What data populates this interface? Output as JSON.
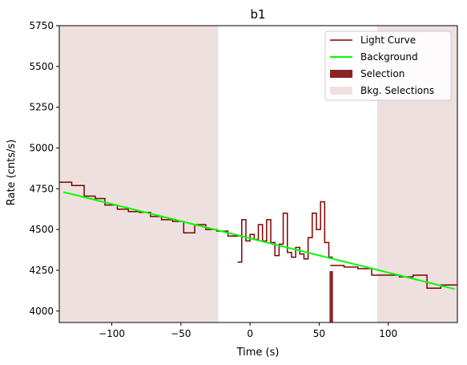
{
  "chart_data": {
    "type": "line",
    "title": "b1",
    "xlabel": "Time (s)",
    "ylabel": "Rate (cnts/s)",
    "xlim": [
      -138,
      150
    ],
    "ylim": [
      3930,
      5750
    ],
    "xticks": [
      -100,
      -50,
      0,
      50,
      100
    ],
    "yticks": [
      4000,
      4250,
      4500,
      4750,
      5000,
      5250,
      5500,
      5750
    ],
    "grid": false,
    "legend_position": "top-right",
    "legend": [
      {
        "label": "Light Curve",
        "kind": "line",
        "color": "#800000"
      },
      {
        "label": "Background",
        "kind": "line",
        "color": "#00ff00"
      },
      {
        "label": "Selection",
        "kind": "patch",
        "color": "#8b2525"
      },
      {
        "label": "Bkg. Selections",
        "kind": "patch",
        "color": "#efe0e0"
      }
    ],
    "light_curve": {
      "name": "Light Curve",
      "color": "#800000",
      "segments": [
        {
          "edges": [
            -138,
            -129,
            -120,
            -112,
            -105,
            -96,
            -88,
            -80,
            -72,
            -64,
            -56,
            -48,
            -40,
            -32,
            -24,
            -16,
            -8
          ],
          "values": [
            4790,
            4770,
            4705,
            4690,
            4650,
            4625,
            4610,
            4605,
            4580,
            4560,
            4550,
            4480,
            4530,
            4500,
            4490,
            4460
          ]
        },
        {
          "edges": [
            -9,
            -6,
            -3,
            0,
            3,
            6,
            9,
            12,
            15,
            18,
            21,
            24,
            27,
            30,
            33,
            36,
            39,
            42,
            45,
            48,
            51,
            54,
            57,
            60
          ],
          "values": [
            4300,
            4560,
            4430,
            4470,
            4440,
            4530,
            4430,
            4560,
            4420,
            4340,
            4410,
            4600,
            4360,
            4330,
            4390,
            4350,
            4320,
            4450,
            4600,
            4500,
            4670,
            4420,
            4330
          ]
        },
        {
          "edges": [
            58,
            68,
            78,
            88,
            98,
            108,
            118,
            128,
            138,
            150
          ],
          "values": [
            4280,
            4270,
            4260,
            4220,
            4220,
            4210,
            4220,
            4140,
            4160
          ]
        }
      ]
    },
    "background": {
      "name": "Background",
      "color": "#00ff00",
      "x": [
        -135,
        148
      ],
      "y": [
        4730,
        4135
      ]
    },
    "selection": {
      "name": "Selection",
      "color": "#8b2525",
      "x_range": [
        57.5,
        60
      ]
    },
    "bkg_selections": {
      "name": "Bkg. Selections",
      "color": "#efe0e0",
      "ranges": [
        [
          -138,
          -23
        ],
        [
          92,
          150
        ]
      ]
    }
  }
}
